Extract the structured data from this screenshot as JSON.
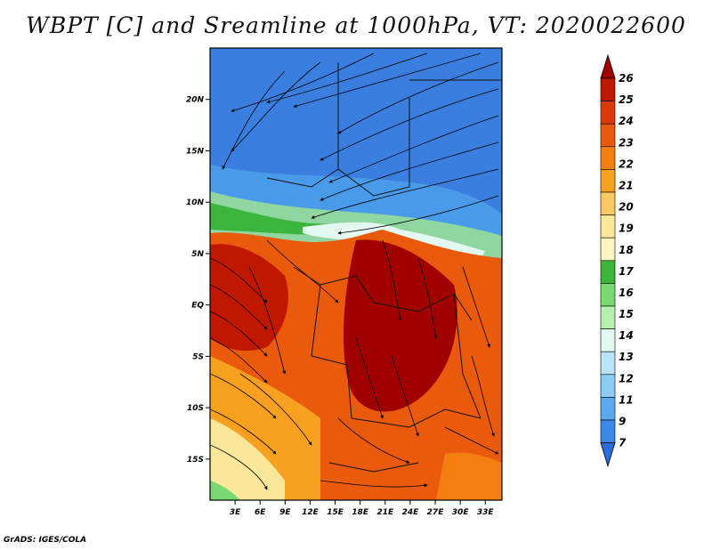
{
  "title": "WBPT [C] and Sreamline at 1000hPa, VT: 2020022600",
  "credit": "GrADS: IGES/COLA",
  "map": {
    "lat_ticks": [
      "20N",
      "15N",
      "10N",
      "5N",
      "EQ",
      "5S",
      "10S",
      "15S"
    ],
    "lat_values": [
      20,
      15,
      10,
      5,
      0,
      -5,
      -10,
      -15
    ],
    "lon_ticks": [
      "3E",
      "6E",
      "9E",
      "12E",
      "15E",
      "18E",
      "21E",
      "24E",
      "27E",
      "30E",
      "33E"
    ],
    "lon_values": [
      3,
      6,
      9,
      12,
      15,
      18,
      21,
      24,
      27,
      30,
      33
    ],
    "lon_range": [
      0,
      35
    ],
    "lat_range": [
      -19,
      25
    ]
  },
  "colorbar": {
    "labels": [
      "26",
      "25",
      "24",
      "23",
      "22",
      "21",
      "20",
      "19",
      "18",
      "17",
      "16",
      "15",
      "14",
      "13",
      "12",
      "11",
      "9",
      "7"
    ],
    "colors": [
      "#a00000",
      "#c01800",
      "#dc3a08",
      "#ea5a0c",
      "#f27f10",
      "#f8a020",
      "#fac860",
      "#fbe79a",
      "#fcf5c2",
      "#3cb53c",
      "#7ad872",
      "#b6efb0",
      "#e2f8f0",
      "#b8e3f8",
      "#8ccbf3",
      "#5aa8ee",
      "#3a88e8",
      "#2a6cde"
    ]
  }
}
